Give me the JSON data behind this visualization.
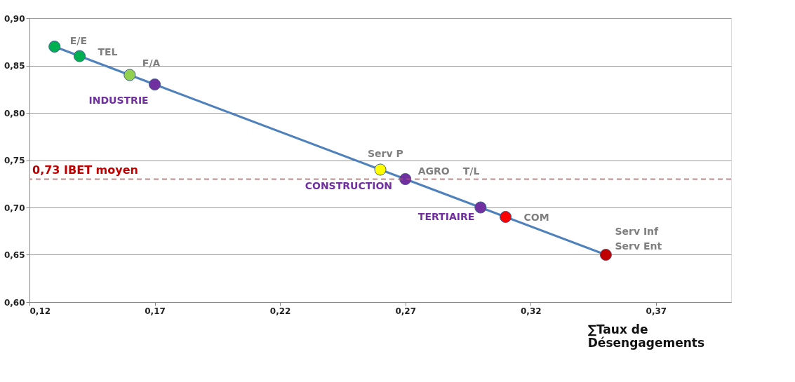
{
  "chart_data": {
    "type": "line",
    "xlabel": "∑Taux de\nDésengagements",
    "x": [
      0.13,
      0.14,
      0.16,
      0.17,
      0.26,
      0.27,
      0.3,
      0.31,
      0.35
    ],
    "series": [
      {
        "color": "#4f81bd",
        "colors": [
          "#00b050",
          "#00b050",
          "#92d050",
          "#7030a0",
          "#ffff00",
          "#7030a0",
          "#7030a0",
          "#ff0000",
          "#c00000"
        ],
        "values": [
          0.87,
          0.86,
          0.84,
          0.83,
          0.74,
          0.73,
          0.7,
          0.69,
          0.65
        ]
      }
    ],
    "marker": "circle",
    "line_style": "solid",
    "grid": "y",
    "legend": false,
    "xlim": [
      0.12,
      0.4
    ],
    "ylim": [
      0.6,
      0.9
    ],
    "xticks": [
      {
        "value": 0.12,
        "label": "0,12"
      },
      {
        "value": 0.17,
        "label": "0,17"
      },
      {
        "value": 0.22,
        "label": "0,22"
      },
      {
        "value": 0.27,
        "label": "0,27"
      },
      {
        "value": 0.32,
        "label": "0,32"
      },
      {
        "value": 0.37,
        "label": "0,37"
      }
    ],
    "yticks": [
      {
        "value": 0.6,
        "label": "0,60"
      },
      {
        "value": 0.65,
        "label": "0,65"
      },
      {
        "value": 0.7,
        "label": "0,70"
      },
      {
        "value": 0.75,
        "label": "0,75"
      },
      {
        "value": 0.8,
        "label": "0,80"
      },
      {
        "value": 0.85,
        "label": "0,85"
      },
      {
        "value": 0.9,
        "label": "0,90"
      }
    ],
    "ref_lines": [
      {
        "axis": "y",
        "value": 0.73,
        "label": "0,73 IBET moyen",
        "color": "#c0504d",
        "line_style": "dashed"
      }
    ],
    "annotations": [
      {
        "text": "E/E",
        "x": 0.13,
        "y": 0.87
      },
      {
        "text": "TEL",
        "x": 0.14,
        "y": 0.86
      },
      {
        "text": "F/A",
        "x": 0.16,
        "y": 0.84
      },
      {
        "text": "INDUSTRIE",
        "x": 0.17,
        "y": 0.83
      },
      {
        "text": "Serv P",
        "x": 0.26,
        "y": 0.74
      },
      {
        "text": "CONSTRUCTION",
        "x": 0.27,
        "y": 0.73
      },
      {
        "text": "AGRO",
        "x": 0.27,
        "y": 0.73
      },
      "T/L",
      {
        "text": "TERTIAIRE",
        "x": 0.3,
        "y": 0.7
      },
      {
        "text": "COM",
        "x": 0.31,
        "y": 0.69
      },
      {
        "text": "Serv Inf",
        "x": 0.35,
        "y": 0.65
      },
      {
        "text": "Serv Ent",
        "x": 0.35,
        "y": 0.65
      }
    ]
  }
}
